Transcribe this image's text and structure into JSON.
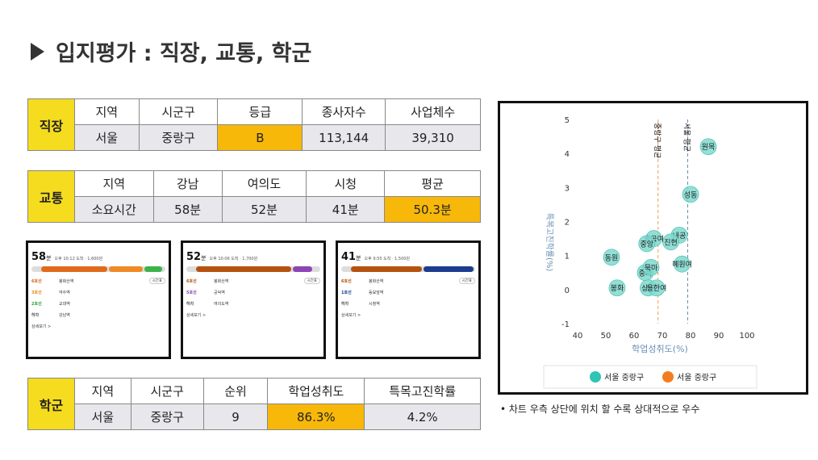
{
  "title": "입지평가 : 직장, 교통, 학군",
  "jobs": {
    "category": "직장",
    "headers": [
      "지역",
      "시군구",
      "등급",
      "종사자수",
      "사업체수"
    ],
    "values": [
      "서울",
      "중랑구",
      "B",
      "113,144",
      "39,310"
    ]
  },
  "transport": {
    "category": "교통",
    "headers": [
      "지역",
      "강남",
      "여의도",
      "시청",
      "평균"
    ],
    "values": [
      "소요시간",
      "58분",
      "52분",
      "41분",
      "50.3분"
    ]
  },
  "school": {
    "category": "학군",
    "headers": [
      "지역",
      "시군구",
      "순위",
      "학업성취도",
      "특목고진학률"
    ],
    "values": [
      "서울",
      "중랑구",
      "9",
      "86.3%",
      "4.2%"
    ]
  },
  "routes": [
    {
      "time": "58",
      "unit": "분",
      "info": "오후 10:12 도착 · 1,600원",
      "lines": [
        "6호선",
        "3호선",
        "2호선",
        "하차"
      ],
      "stations": [
        "봉화산역",
        "약수역",
        "교대역",
        "강남역"
      ],
      "detail": "상세보기 >",
      "btn": "시간표"
    },
    {
      "time": "52",
      "unit": "분",
      "info": "오후 10:06 도착 · 1,700원",
      "lines": [
        "6호선",
        "5호선",
        "하차"
      ],
      "stations": [
        "봉화산역",
        "공덕역",
        "여의도역"
      ],
      "detail": "상세보기 >",
      "btn": "시간표"
    },
    {
      "time": "41",
      "unit": "분",
      "info": "오후 9:55 도착 · 1,500원",
      "lines": [
        "6호선",
        "1호선",
        "하차"
      ],
      "stations": [
        "봉화산역",
        "동묘앞역",
        "시청역"
      ],
      "detail": "상세보기 >",
      "btn": "시간표"
    }
  ],
  "chart_data": {
    "type": "scatter",
    "xlabel": "학업성취도(%)",
    "ylabel": "특목고진학률(%)",
    "xlim": [
      40,
      100
    ],
    "ylim": [
      -1,
      5
    ],
    "xticks": [
      "40",
      "50",
      "60",
      "70",
      "80",
      "90",
      "100"
    ],
    "yticks": [
      "-1",
      "0",
      "1",
      "2",
      "3",
      "4",
      "5"
    ],
    "points": [
      {
        "label": "원목",
        "x": 86.3,
        "y": 4.2
      },
      {
        "label": "성동",
        "x": 80,
        "y": 2.8
      },
      {
        "label": "내공",
        "x": 76,
        "y": 1.6
      },
      {
        "label": "진현",
        "x": 73,
        "y": 1.4
      },
      {
        "label": "송곡여",
        "x": 67,
        "y": 1.5
      },
      {
        "label": "중앙",
        "x": 64.5,
        "y": 1.35
      },
      {
        "label": "동원",
        "x": 52,
        "y": 0.95
      },
      {
        "label": "혜원여",
        "x": 77,
        "y": 0.75
      },
      {
        "label": "중화",
        "x": 64,
        "y": 0.5
      },
      {
        "label": "묵마",
        "x": 66,
        "y": 0.65
      },
      {
        "label": "봉화",
        "x": 54,
        "y": 0.05
      },
      {
        "label": "상원",
        "x": 65,
        "y": 0.05
      },
      {
        "label": "용한여",
        "x": 68,
        "y": 0.05
      }
    ],
    "vlines": [
      {
        "label": "중랑구 평균",
        "x": 68.5,
        "color": "#f59a4a"
      },
      {
        "label": "서울 평균",
        "x": 79,
        "color": "#6a8fb5"
      }
    ],
    "legend": [
      {
        "label": "서울 중랑구",
        "color": "#2ec4b6"
      },
      {
        "label": "서울 중랑구",
        "color": "#f47c20"
      }
    ],
    "point_color": "#7fd9cf",
    "legend_position": "bottom"
  },
  "note": "• 차트 우측 상단에 위치 할 수록 상대적으로 우수"
}
